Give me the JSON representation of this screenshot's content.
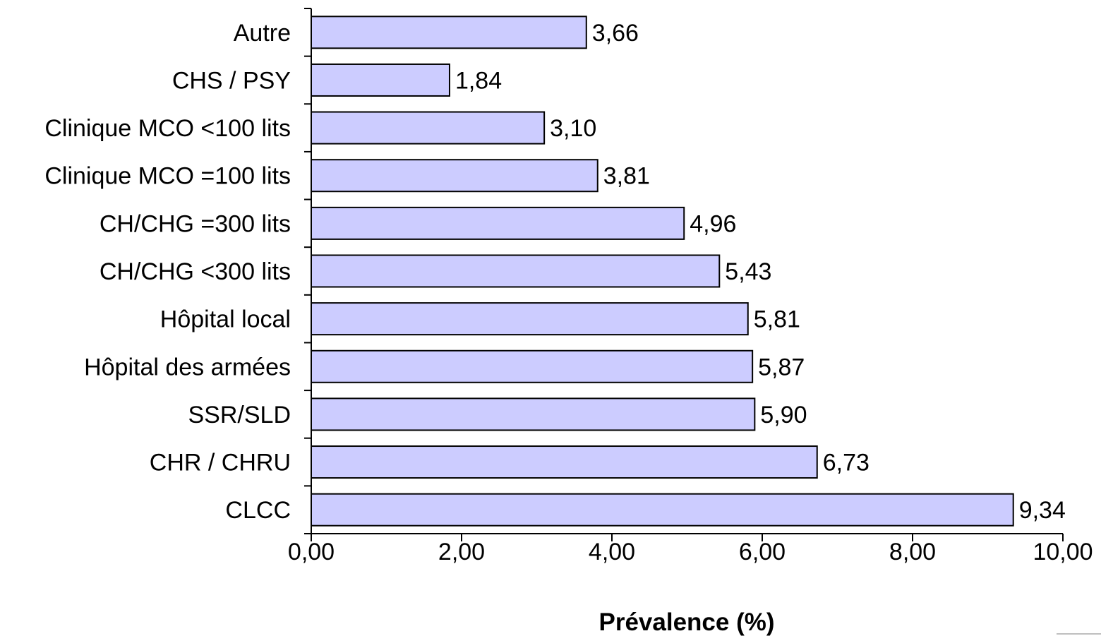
{
  "chart_data": {
    "type": "bar",
    "orientation": "horizontal",
    "categories": [
      "Autre",
      "CHS / PSY",
      "Clinique MCO <100 lits",
      "Clinique MCO =100 lits",
      "CH/CHG =300 lits",
      "CH/CHG <300 lits",
      "Hôpital local",
      "Hôpital des armées",
      "SSR/SLD",
      "CHR / CHRU",
      "CLCC"
    ],
    "values": [
      3.66,
      1.84,
      3.1,
      3.81,
      4.96,
      5.43,
      5.81,
      5.87,
      5.9,
      6.73,
      9.34
    ],
    "value_labels": [
      "3,66",
      "1,84",
      "3,10",
      "3,81",
      "4,96",
      "5,43",
      "5,81",
      "5,87",
      "5,90",
      "6,73",
      "9,34"
    ],
    "title": "",
    "xlabel": "Prévalence (%)",
    "ylabel": "",
    "xlim": [
      0,
      10
    ],
    "x_ticks": [
      0,
      2,
      4,
      6,
      8,
      10
    ],
    "x_tick_labels": [
      "0,00",
      "2,00",
      "4,00",
      "6,00",
      "8,00",
      "10,00"
    ],
    "grid": false,
    "legend": "none",
    "bar_color": "#CCCCFF",
    "bar_edge_color": "#000000"
  }
}
